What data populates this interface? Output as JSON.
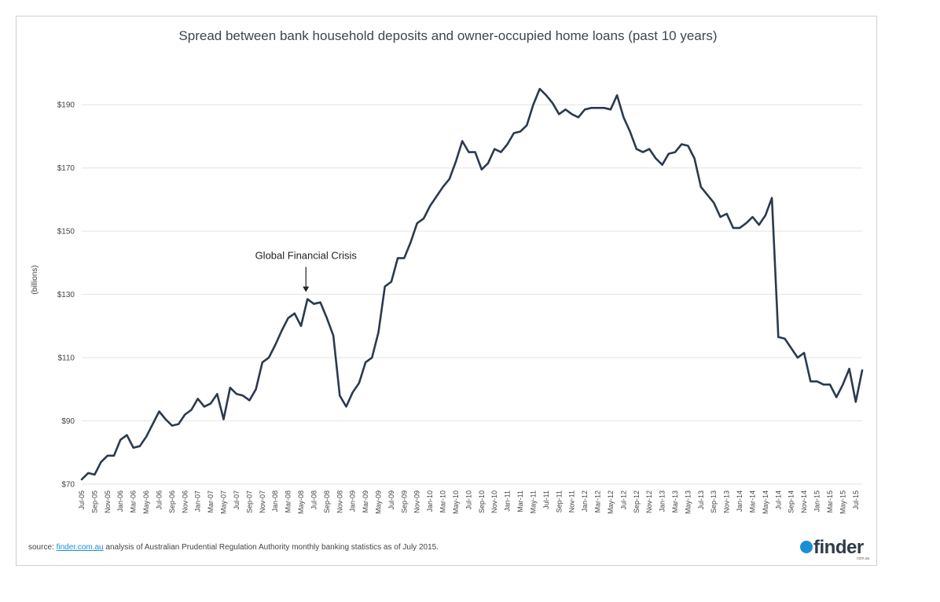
{
  "chart_data": {
    "type": "line",
    "title": "Spread between bank household deposits and owner-occupied home loans (past 10 years)",
    "ylabel": "(billions)",
    "xlabel": "",
    "ylim": [
      70,
      200
    ],
    "yticks": [
      {
        "value": 70,
        "label": "$70"
      },
      {
        "value": 90,
        "label": "$90"
      },
      {
        "value": 110,
        "label": "$110"
      },
      {
        "value": 130,
        "label": "$130"
      },
      {
        "value": 150,
        "label": "$150"
      },
      {
        "value": 170,
        "label": "$170"
      },
      {
        "value": 190,
        "label": "$190"
      }
    ],
    "grid": true,
    "line_color": "#2b3a4e",
    "x": [
      "Jul-05",
      "Aug-05",
      "Sep-05",
      "Oct-05",
      "Nov-05",
      "Dec-05",
      "Jan-06",
      "Feb-06",
      "Mar-06",
      "Apr-06",
      "May-06",
      "Jun-06",
      "Jul-06",
      "Aug-06",
      "Sep-06",
      "Oct-06",
      "Nov-06",
      "Dec-06",
      "Jan-07",
      "Feb-07",
      "Mar-07",
      "Apr-07",
      "May-07",
      "Jun-07",
      "Jul-07",
      "Aug-07",
      "Sep-07",
      "Oct-07",
      "Nov-07",
      "Dec-07",
      "Jan-08",
      "Feb-08",
      "Mar-08",
      "Apr-08",
      "May-08",
      "Jun-08",
      "Jul-08",
      "Aug-08",
      "Sep-08",
      "Oct-08",
      "Nov-08",
      "Dec-08",
      "Jan-09",
      "Feb-09",
      "Mar-09",
      "Apr-09",
      "May-09",
      "Jun-09",
      "Jul-09",
      "Aug-09",
      "Sep-09",
      "Oct-09",
      "Nov-09",
      "Dec-09",
      "Jan-10",
      "Feb-10",
      "Mar-10",
      "Apr-10",
      "May-10",
      "Jun-10",
      "Jul-10",
      "Aug-10",
      "Sep-10",
      "Oct-10",
      "Nov-10",
      "Dec-10",
      "Jan-11",
      "Feb-11",
      "Mar-11",
      "Apr-11",
      "May-11",
      "Jun-11",
      "Jul-11",
      "Aug-11",
      "Sep-11",
      "Oct-11",
      "Nov-11",
      "Dec-11",
      "Jan-12",
      "Feb-12",
      "Mar-12",
      "Apr-12",
      "May-12",
      "Jun-12",
      "Jul-12",
      "Aug-12",
      "Sep-12",
      "Oct-12",
      "Nov-12",
      "Dec-12",
      "Jan-13",
      "Feb-13",
      "Mar-13",
      "Apr-13",
      "May-13",
      "Jun-13",
      "Jul-13",
      "Aug-13",
      "Sep-13",
      "Oct-13",
      "Nov-13",
      "Dec-13",
      "Jan-14",
      "Feb-14",
      "Mar-14",
      "Apr-14",
      "May-14",
      "Jun-14",
      "Jul-14",
      "Aug-14",
      "Sep-14",
      "Oct-14",
      "Nov-14",
      "Dec-14",
      "Jan-15",
      "Feb-15",
      "Mar-15",
      "Apr-15",
      "May-15",
      "Jun-15",
      "Jul-15",
      "Aug-15"
    ],
    "xticklabels": [
      "Jul-05",
      "Sep-05",
      "Nov-05",
      "Jan-06",
      "Mar-06",
      "May-06",
      "Jul-06",
      "Sep-06",
      "Nov-06",
      "Jan-07",
      "Mar-07",
      "May-07",
      "Jul-07",
      "Sep-07",
      "Nov-07",
      "Jan-08",
      "Mar-08",
      "May-08",
      "Jul-08",
      "Sep-08",
      "Nov-08",
      "Jan-09",
      "Mar-09",
      "May-09",
      "Jul-09",
      "Sep-09",
      "Nov-09",
      "Jan-10",
      "Mar-10",
      "May-10",
      "Jul-10",
      "Sep-10",
      "Nov-10",
      "Jan-11",
      "Mar-11",
      "May-11",
      "Jul-11",
      "Sep-11",
      "Nov-11",
      "Jan-12",
      "Mar-12",
      "May-12",
      "Jul-12",
      "Sep-12",
      "Nov-12",
      "Jan-13",
      "Mar-13",
      "May-13",
      "Jul-13",
      "Sep-13",
      "Nov-13",
      "Jan-14",
      "Mar-14",
      "May-14",
      "Jul-14",
      "Sep-14",
      "Nov-14",
      "Jan-15",
      "Mar-15",
      "May-15",
      "Jul-15"
    ],
    "values": [
      71.5,
      73.5,
      73,
      77,
      79,
      79,
      84,
      85.5,
      81.5,
      82,
      85,
      89,
      93,
      90.5,
      88.5,
      89,
      92,
      93.5,
      97,
      94.5,
      95.5,
      98.5,
      90.5,
      100.5,
      98.5,
      98,
      96.5,
      100,
      108.5,
      110,
      114,
      118.5,
      122.5,
      124,
      120,
      128.5,
      127,
      127.5,
      122.5,
      117,
      98,
      94.5,
      99,
      102,
      108.5,
      110,
      118,
      132.5,
      134,
      141.5,
      141.5,
      146.5,
      152.5,
      154,
      158,
      161,
      164,
      166.5,
      172,
      178.5,
      175,
      175,
      169.5,
      171.5,
      176,
      175,
      177.5,
      181,
      181.5,
      183.5,
      190,
      195,
      193,
      190.5,
      187,
      188.5,
      187,
      186,
      188.5,
      189,
      189,
      189,
      188.5,
      193,
      186,
      181.5,
      176,
      175,
      176,
      173,
      171,
      174.5,
      175,
      177.5,
      177,
      173,
      164,
      161.5,
      159,
      154.5,
      155.5,
      151,
      151,
      152.5,
      154.5,
      152,
      155,
      160.5,
      116.5,
      116,
      113,
      110,
      111.5,
      102.5,
      102.5,
      101.5,
      101.5,
      97.5,
      101.5,
      106.5,
      96,
      106
    ],
    "annotation": {
      "text": "Global Financial Crisis",
      "x": "Jun-08",
      "y": 128.5
    }
  },
  "footer": {
    "source_prefix": "source: ",
    "source_link": "finder.com.au",
    "source_suffix": " analysis of Australian Prudential Regulation Authority monthly banking statistics as of July 2015."
  },
  "logo": {
    "text": "finder",
    "subtext": "com.au",
    "accent": "#1a8fd6"
  }
}
